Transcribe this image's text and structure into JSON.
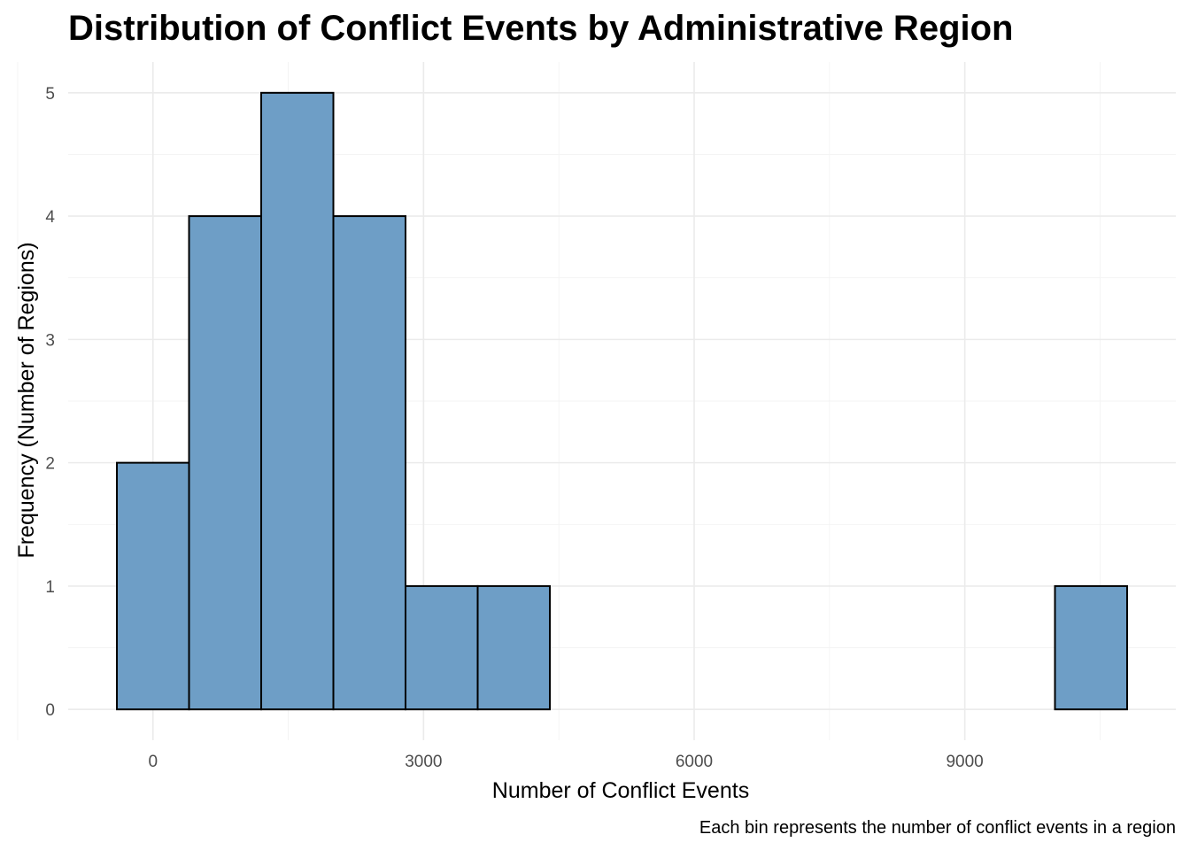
{
  "chart_data": {
    "type": "bar",
    "subtype": "histogram",
    "title": "Distribution of Conflict Events by Administrative Region",
    "xlabel": "Number of Conflict Events",
    "ylabel": "Frequency (Number of Regions)",
    "caption": "Each bin represents the number of conflict events in a region",
    "bin_width": 800,
    "bins": [
      {
        "start": -400,
        "end": 400,
        "count": 2
      },
      {
        "start": 400,
        "end": 1200,
        "count": 4
      },
      {
        "start": 1200,
        "end": 2000,
        "count": 5
      },
      {
        "start": 2000,
        "end": 2800,
        "count": 4
      },
      {
        "start": 2800,
        "end": 3600,
        "count": 1
      },
      {
        "start": 3600,
        "end": 4400,
        "count": 1
      },
      {
        "start": 4400,
        "end": 5200,
        "count": 0
      },
      {
        "start": 5200,
        "end": 6000,
        "count": 0
      },
      {
        "start": 6000,
        "end": 6800,
        "count": 0
      },
      {
        "start": 6800,
        "end": 7600,
        "count": 0
      },
      {
        "start": 7600,
        "end": 8400,
        "count": 0
      },
      {
        "start": 8400,
        "end": 9200,
        "count": 0
      },
      {
        "start": 9200,
        "end": 10000,
        "count": 0
      },
      {
        "start": 10000,
        "end": 10800,
        "count": 1
      }
    ],
    "xlim": [
      -940,
      11340
    ],
    "ylim": [
      -0.25,
      5.25
    ],
    "x_ticks": [
      {
        "value": 0,
        "label": "0"
      },
      {
        "value": 3000,
        "label": "3000"
      },
      {
        "value": 6000,
        "label": "6000"
      },
      {
        "value": 9000,
        "label": "9000"
      }
    ],
    "x_minor_ticks": [
      -1500,
      1500,
      4500,
      7500,
      10500
    ],
    "y_ticks": [
      {
        "value": 0,
        "label": "0"
      },
      {
        "value": 1,
        "label": "1"
      },
      {
        "value": 2,
        "label": "2"
      },
      {
        "value": 3,
        "label": "3"
      },
      {
        "value": 4,
        "label": "4"
      },
      {
        "value": 5,
        "label": "5"
      }
    ],
    "y_minor_ticks": [
      0.5,
      1.5,
      2.5,
      3.5,
      4.5
    ],
    "grid": true,
    "legend": "none",
    "colors": {
      "fill": "#6e9ec6",
      "outline": "#000000"
    }
  }
}
